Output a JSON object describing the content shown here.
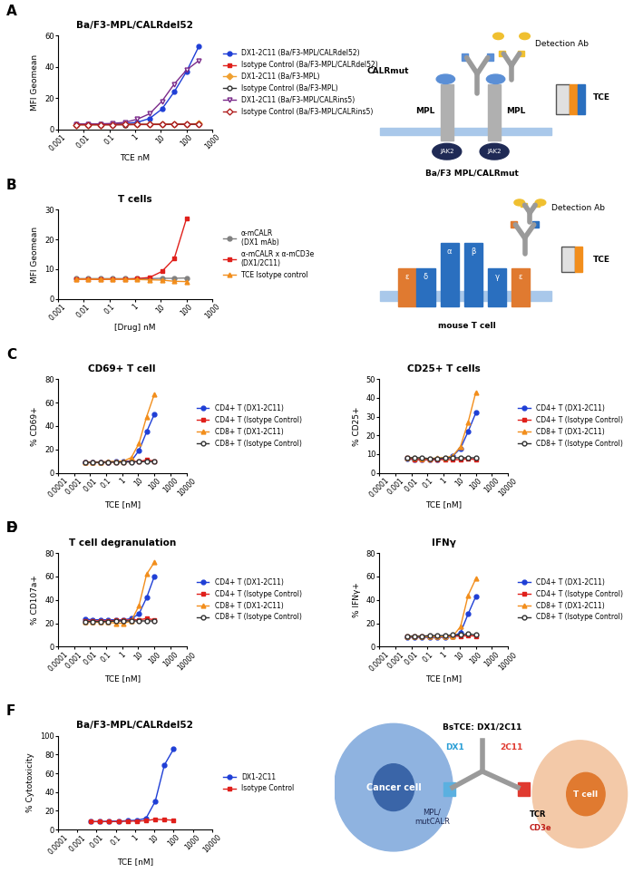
{
  "chart_data": [
    {
      "type": "line",
      "panel": "A",
      "title": "Ba/F3-MPL/CALRdel52",
      "x_label": "TCE nM",
      "y_label": "MFI Geomean",
      "log": "x",
      "grid": false,
      "legend": "center left",
      "x": [
        300,
        100,
        33.3,
        11.1,
        3.7,
        1.23,
        0.41,
        0.137,
        0.0457,
        0.0152,
        0.00508
      ],
      "xlim": [
        0.001,
        1000
      ],
      "xticks": [
        0.001,
        0.01,
        0.1,
        1,
        10,
        100,
        1000
      ],
      "ylim": [
        0,
        60
      ],
      "yticks": [
        0,
        20,
        40,
        60
      ],
      "series": [
        {
          "name": "DX1-2C11 (Ba/F3-MPL/CALRdel52)",
          "color": "#1f3fd6",
          "marker": "circle",
          "line_style": "solid",
          "values": [
            53,
            37,
            24,
            13,
            7,
            4.5,
            3.8,
            3.5,
            3.4,
            3.4,
            3.3
          ]
        },
        {
          "name": "Isotype Control (Ba/F3-MPL/CALRdel52)",
          "color": "#e0201b",
          "marker": "square",
          "line_style": "solid",
          "values": [
            3.5,
            3.3,
            3.2,
            3.2,
            3.1,
            3.1,
            3.0,
            3.0,
            3.0,
            3.0,
            3.0
          ]
        },
        {
          "name": "DX1-2C11 (Ba/F3-MPL)",
          "color": "#f0a030",
          "marker": "diamond",
          "line_style": "solid",
          "values": [
            3.6,
            3.4,
            3.3,
            3.2,
            3.2,
            3.1,
            3.1,
            3.1,
            3.0,
            3.0,
            3.0
          ]
        },
        {
          "name": "Isotype Control (Ba/F3-MPL)",
          "color": "#333333",
          "marker": "open_circle",
          "line_style": "solid",
          "values": [
            3.3,
            3.2,
            3.2,
            3.1,
            3.1,
            3.1,
            3.0,
            3.0,
            3.0,
            3.0,
            3.0
          ]
        },
        {
          "name": "DX1-2C11 (Ba/F3-MPL/CALRins5)",
          "color": "#7a2a8a",
          "marker": "open_triangle_down",
          "line_style": "solid",
          "values": [
            44,
            38,
            29,
            18,
            10,
            6.5,
            4.5,
            3.8,
            3.5,
            3.4,
            3.4
          ]
        },
        {
          "name": "Isotype Control (Ba/F3-MPL/CALRins5)",
          "color": "#b22222",
          "marker": "open_diamond",
          "line_style": "solid",
          "values": [
            3.4,
            3.3,
            3.2,
            3.2,
            3.1,
            3.1,
            3.1,
            3.0,
            3.0,
            3.0,
            3.0
          ]
        }
      ]
    },
    {
      "type": "line",
      "panel": "B",
      "title": "T cells",
      "x_label": "[Drug] nM",
      "y_label": "MFI Geomean",
      "log": "x",
      "grid": false,
      "legend": "center left",
      "x": [
        100,
        33.3,
        11.1,
        3.7,
        1.23,
        0.41,
        0.137,
        0.0457,
        0.0152,
        0.00508
      ],
      "xlim": [
        0.001,
        1000
      ],
      "xticks": [
        0.001,
        0.01,
        0.1,
        1,
        10,
        100,
        1000
      ],
      "ylim": [
        0,
        30
      ],
      "yticks": [
        0,
        10,
        20,
        30
      ],
      "series": [
        {
          "name": "α-mCALR\n(DX1 mAb)",
          "color": "#808080",
          "marker": "circle",
          "line_style": "solid",
          "values": [
            7,
            6.9,
            6.9,
            6.8,
            6.8,
            6.8,
            6.8,
            6.8,
            6.8,
            6.8
          ]
        },
        {
          "name": "α-mCALR x α-mCD3e\n(DX1/2C11)",
          "color": "#e0201b",
          "marker": "square",
          "line_style": "solid",
          "values": [
            27,
            13.5,
            9.2,
            7.2,
            6.8,
            6.6,
            6.6,
            6.5,
            6.6,
            6.6
          ]
        },
        {
          "name": "TCE Isotype control",
          "color": "#f28e1c",
          "marker": "triangle",
          "line_style": "solid",
          "values": [
            5.8,
            5.9,
            6.3,
            6.4,
            6.5,
            6.6,
            6.6,
            6.6,
            6.6,
            6.6
          ]
        }
      ]
    },
    {
      "type": "line",
      "panel": "C",
      "title": "CD69+ T cell",
      "x_label": "TCE [nM]",
      "y_label": "% CD69+",
      "log": "x",
      "grid": false,
      "legend": "center left",
      "x": [
        100,
        33.3,
        11.1,
        3.7,
        1.23,
        0.41,
        0.137,
        0.0457,
        0.0152,
        0.00508
      ],
      "xlim": [
        0.0001,
        10000
      ],
      "xticks": [
        0.0001,
        0.001,
        0.01,
        0.1,
        1,
        10,
        100,
        1000,
        10000
      ],
      "ylim": [
        0,
        80
      ],
      "yticks": [
        0,
        20,
        40,
        60,
        80
      ],
      "series": [
        {
          "name": "CD4+ T (DX1-2C11)",
          "color": "#1f3fd6",
          "marker": "circle",
          "line_style": "solid",
          "values": [
            50,
            35,
            19,
            10,
            9.5,
            9.5,
            9.3,
            9.2,
            9.0,
            9.0
          ]
        },
        {
          "name": "CD4+ T (Isotype Control)",
          "color": "#e0201b",
          "marker": "square",
          "line_style": "solid",
          "values": [
            10,
            11,
            9.5,
            9.5,
            9.3,
            9.2,
            9.1,
            9.0,
            9.0,
            9.0
          ]
        },
        {
          "name": "CD8+ T (DX1-2C11)",
          "color": "#f28e1c",
          "marker": "triangle",
          "line_style": "solid",
          "values": [
            67,
            48,
            25,
            13,
            10,
            9.8,
            9.5,
            9.2,
            9.0,
            9.0
          ]
        },
        {
          "name": "CD8+ T (Isotype Control)",
          "color": "#333333",
          "marker": "open_circle",
          "line_style": "solid",
          "values": [
            9.5,
            9.6,
            9.4,
            9.3,
            9.2,
            9.1,
            9.0,
            9.0,
            8.9,
            8.9
          ]
        }
      ]
    },
    {
      "type": "line",
      "title": "CD25+ T cells",
      "x_label": "TCE [nM]",
      "y_label": "% CD25+",
      "log": "x",
      "grid": false,
      "legend": "center left",
      "x": [
        100,
        33.3,
        11.1,
        3.7,
        1.23,
        0.41,
        0.137,
        0.0457,
        0.0152,
        0.00508
      ],
      "xlim": [
        0.0001,
        10000
      ],
      "xticks": [
        0.0001,
        0.001,
        0.01,
        0.1,
        1,
        10,
        100,
        1000,
        10000
      ],
      "ylim": [
        0,
        50
      ],
      "yticks": [
        0,
        10,
        20,
        30,
        40,
        50
      ],
      "series": [
        {
          "name": "CD4+ T (DX1-2C11)",
          "color": "#1f3fd6",
          "marker": "circle",
          "line_style": "solid",
          "values": [
            32,
            22,
            13,
            9,
            7.5,
            7,
            7,
            7,
            7,
            7.5
          ]
        },
        {
          "name": "CD4+ T (Isotype Control)",
          "color": "#e0201b",
          "marker": "square",
          "line_style": "solid",
          "values": [
            7,
            7.5,
            7,
            7,
            7,
            7,
            7,
            7,
            7,
            8
          ]
        },
        {
          "name": "CD8+ T (DX1-2C11)",
          "color": "#f28e1c",
          "marker": "triangle",
          "line_style": "solid",
          "values": [
            43,
            27,
            14,
            9,
            8,
            8,
            7.5,
            7.5,
            8,
            8
          ]
        },
        {
          "name": "CD8+ T (Isotype Control)",
          "color": "#333333",
          "marker": "open_circle",
          "line_style": "solid",
          "values": [
            8,
            8,
            8,
            8,
            8,
            7.5,
            7.5,
            8,
            8,
            8
          ]
        }
      ]
    },
    {
      "type": "line",
      "panel": "D",
      "title": "T cell degranulation",
      "x_label": "TCE [nM]",
      "y_label": "% CD107a+",
      "log": "x",
      "grid": false,
      "legend": "center left",
      "x": [
        100,
        33.3,
        11.1,
        3.7,
        1.23,
        0.41,
        0.137,
        0.0457,
        0.0152,
        0.00508
      ],
      "xlim": [
        0.0001,
        10000
      ],
      "xticks": [
        0.0001,
        0.001,
        0.01,
        0.1,
        1,
        10,
        100,
        1000,
        10000
      ],
      "ylim": [
        0,
        80
      ],
      "yticks": [
        0,
        20,
        40,
        60,
        80
      ],
      "series": [
        {
          "name": "CD4+ T (DX1-2C11)",
          "color": "#1f3fd6",
          "marker": "circle",
          "line_style": "solid",
          "values": [
            60,
            42,
            28,
            24,
            23,
            23,
            23,
            23,
            23,
            23.5
          ]
        },
        {
          "name": "CD4+ T (Isotype Control)",
          "color": "#e0201b",
          "marker": "square",
          "line_style": "solid",
          "values": [
            23,
            24,
            23,
            23,
            22.5,
            22.5,
            22,
            22,
            22,
            22
          ]
        },
        {
          "name": "CD8+ T (DX1-2C11)",
          "color": "#f28e1c",
          "marker": "triangle",
          "line_style": "solid",
          "values": [
            72,
            62,
            35,
            22,
            20,
            20,
            21,
            21,
            21,
            21
          ]
        },
        {
          "name": "CD8+ T (Isotype Control)",
          "color": "#333333",
          "marker": "open_circle",
          "line_style": "solid",
          "values": [
            22,
            22,
            22,
            22,
            22,
            22,
            21.5,
            21.5,
            21.5,
            21.5
          ]
        }
      ]
    },
    {
      "type": "line",
      "panel": "E",
      "title": "IFNγ",
      "x_label": "TCE [nM]",
      "y_label": "% IFNγ+",
      "log": "x",
      "grid": false,
      "legend": "center left",
      "x": [
        100,
        33.3,
        11.1,
        3.7,
        1.23,
        0.41,
        0.137,
        0.0457,
        0.0152,
        0.00508
      ],
      "xlim": [
        0.0001,
        10000
      ],
      "xticks": [
        0.0001,
        0.001,
        0.01,
        0.1,
        1,
        10,
        100,
        1000,
        10000
      ],
      "ylim": [
        0,
        80
      ],
      "yticks": [
        0,
        20,
        40,
        60,
        80
      ],
      "series": [
        {
          "name": "CD4+ T (DX1-2C11)",
          "color": "#1f3fd6",
          "marker": "circle",
          "line_style": "solid",
          "values": [
            43,
            28,
            12,
            8.5,
            8,
            8,
            8,
            8,
            8,
            8
          ]
        },
        {
          "name": "CD4+ T (Isotype Control)",
          "color": "#e0201b",
          "marker": "square",
          "line_style": "solid",
          "values": [
            9,
            9.5,
            9,
            9,
            8.5,
            8.5,
            8.5,
            8.5,
            8.5,
            8.5
          ]
        },
        {
          "name": "CD8+ T (DX1-2C11)",
          "color": "#f28e1c",
          "marker": "triangle",
          "line_style": "solid",
          "values": [
            58,
            44,
            17,
            9,
            8.5,
            8.5,
            8.5,
            8.5,
            8.5,
            8.5
          ]
        },
        {
          "name": "CD8+ T (Isotype Control)",
          "color": "#333333",
          "marker": "open_circle",
          "line_style": "solid",
          "values": [
            10,
            11,
            10,
            10,
            9.5,
            9.5,
            9.5,
            9,
            9,
            9
          ]
        }
      ]
    },
    {
      "type": "line",
      "panel": "F",
      "title": "Ba/F3-MPL/CALRdel52",
      "x_label": "TCE [nM]",
      "y_label": "% Cytotoxicity",
      "log": "x",
      "grid": false,
      "legend": "center left",
      "x": [
        100,
        33.3,
        11.1,
        3.7,
        1.23,
        0.41,
        0.137,
        0.0457,
        0.0152,
        0.00508
      ],
      "xlim": [
        0.0001,
        10000
      ],
      "xticks": [
        0.0001,
        0.001,
        0.01,
        0.1,
        1,
        10,
        100,
        1000,
        10000
      ],
      "ylim": [
        0,
        100
      ],
      "yticks": [
        0,
        20,
        40,
        60,
        80,
        100
      ],
      "series": [
        {
          "name": "DX1-2C11",
          "color": "#1f3fd6",
          "marker": "circle",
          "line_style": "solid",
          "values": [
            86,
            69,
            30,
            12,
            10,
            9.5,
            9,
            9,
            8.5,
            8.5
          ]
        },
        {
          "name": "Isotype Control",
          "color": "#e0201b",
          "marker": "square",
          "line_style": "solid",
          "values": [
            10,
            10.5,
            11,
            9.5,
            9,
            9,
            8.5,
            8.5,
            8.5,
            8.5
          ]
        }
      ]
    }
  ],
  "diagrams": [
    {
      "panel": "A",
      "texts": [
        "Detection Ab",
        "CALRmut",
        "TCE",
        "MPL",
        "MPL",
        "JAK2",
        "JAK2",
        "Ba/F3 MPL/CALRmut"
      ]
    },
    {
      "panel": "B",
      "texts": [
        "Detection Ab",
        "TCE",
        "mouse T cell",
        "ε",
        "δ",
        "α",
        "β",
        "γ",
        "ε"
      ]
    },
    {
      "panel": "F",
      "texts": [
        "Cancer cell",
        "T cell",
        "BsTCE: DX1/2C11",
        "DX1",
        "2C11",
        "MPL/\nmutCALR",
        "TCR",
        "CD3e"
      ]
    }
  ]
}
